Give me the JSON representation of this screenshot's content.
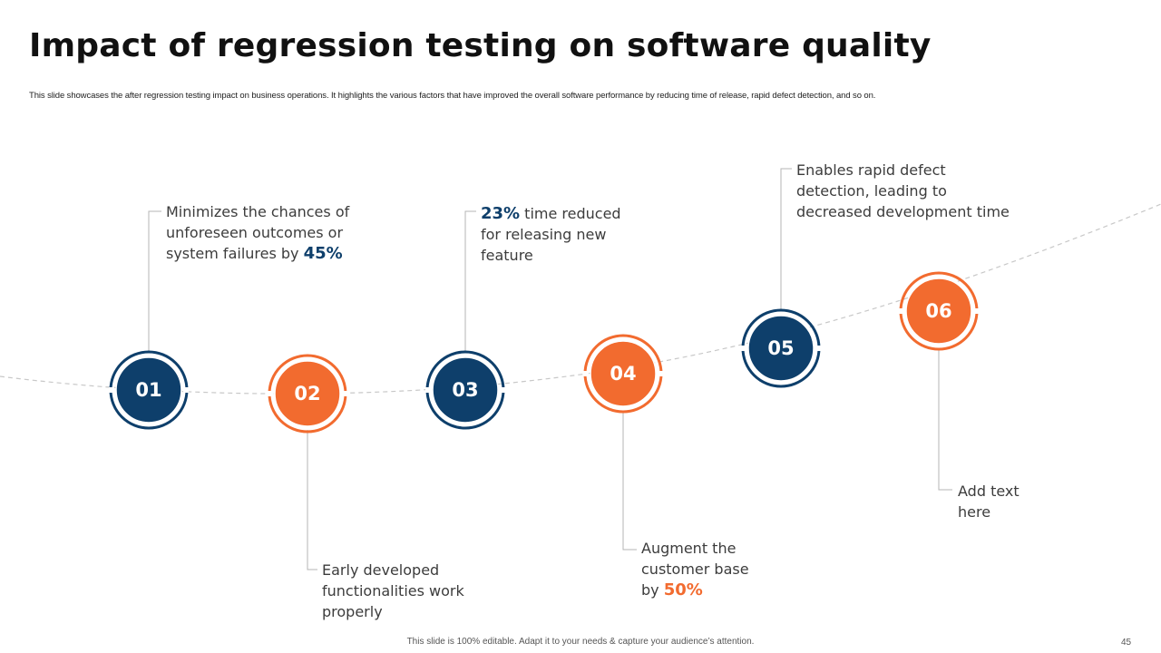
{
  "slide": {
    "title": "Impact of regression testing on software quality",
    "subtitle": "This slide showcases the after regression testing impact on business operations. It highlights the various factors that have improved the overall software performance by reducing time of release, rapid defect detection, and so on.",
    "footer": "This slide is 100% editable. Adapt it to your needs & capture your audience’s attention.",
    "page_number": "45"
  },
  "colors": {
    "navy": "#0e3f6b",
    "orange": "#f26b2f",
    "connector": "#b5b5b5",
    "curve": "#c8c8c8"
  },
  "steps": [
    {
      "number": "01",
      "color": "navy",
      "text_pre": "Minimizes the chances of unforeseen outcomes or system failures by ",
      "highlight": "45%",
      "text_post": ""
    },
    {
      "number": "02",
      "color": "orange",
      "text_pre": "Early developed functionalities work properly",
      "highlight": "",
      "text_post": ""
    },
    {
      "number": "03",
      "color": "navy",
      "text_pre": "",
      "highlight": "23%",
      "text_post": " time reduced for releasing new feature"
    },
    {
      "number": "04",
      "color": "orange",
      "text_pre": "Augment the customer base by ",
      "highlight": "50%",
      "text_post": ""
    },
    {
      "number": "05",
      "color": "navy",
      "text_pre": "Enables rapid defect detection, leading to decreased development time",
      "highlight": "",
      "text_post": ""
    },
    {
      "number": "06",
      "color": "orange",
      "text_pre": "Add text here",
      "highlight": "",
      "text_post": ""
    }
  ]
}
